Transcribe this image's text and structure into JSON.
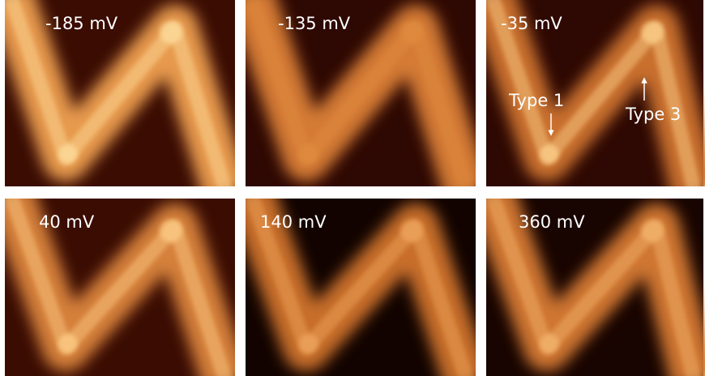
{
  "panels": [
    {
      "label": "-185 mV"
    },
    {
      "label": "-135 mV"
    },
    {
      "label": "-35 mV"
    },
    {
      "label": "40 mV"
    },
    {
      "label": "140 mV"
    },
    {
      "label": "360 mV"
    }
  ],
  "annotations": [
    {
      "label": "Type 1"
    },
    {
      "label": "Type 3"
    }
  ]
}
